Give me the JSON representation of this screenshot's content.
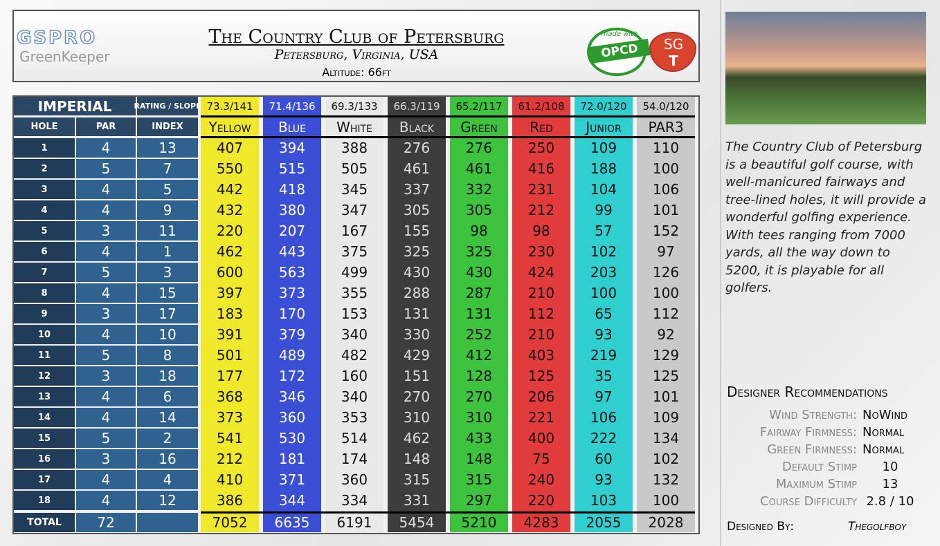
{
  "header": {
    "logo": "GSPRO",
    "logo_sub": "GreenKeeper",
    "title": "The Country Club of Petersburg",
    "subtitle": "Petersburg, Virginia, USA",
    "altitude": "Altitude: 66ft",
    "badge_top": "made with",
    "badge": "OPCD",
    "sg": "SG",
    "sg_sub": "T"
  },
  "table": {
    "system": "IMPERIAL",
    "rating_label": "RATING / SLOPE",
    "columns": [
      "HOLE",
      "PAR",
      "INDEX"
    ],
    "tees": [
      {
        "name": "Yellow",
        "rating": "73.3/141",
        "color": "#f0e82a",
        "text_color": "#111"
      },
      {
        "name": "Blue",
        "rating": "71.4/136",
        "color": "#3b4ed6",
        "text_color": "#fff"
      },
      {
        "name": "White",
        "rating": "69.3/133",
        "color": "#e9e9e9",
        "text_color": "#111"
      },
      {
        "name": "Black",
        "rating": "66.3/119",
        "color": "#3c3c3c",
        "text_color": "#ddd"
      },
      {
        "name": "Green",
        "rating": "65.2/117",
        "color": "#3dc33d",
        "text_color": "#111"
      },
      {
        "name": "Red",
        "rating": "61.2/108",
        "color": "#e23b3b",
        "text_color": "#111"
      },
      {
        "name": "Junior",
        "rating": "72.0/120",
        "color": "#2fcfcf",
        "text_color": "#111"
      },
      {
        "name": "PAR3",
        "rating": "54.0/120",
        "color": "#c9c9c9",
        "text_color": "#111"
      }
    ],
    "rows": [
      [
        1,
        4,
        13,
        407,
        394,
        388,
        276,
        276,
        250,
        109,
        110
      ],
      [
        2,
        5,
        7,
        550,
        515,
        505,
        461,
        461,
        416,
        188,
        100
      ],
      [
        3,
        4,
        5,
        442,
        418,
        345,
        337,
        332,
        231,
        104,
        106
      ],
      [
        4,
        4,
        9,
        432,
        380,
        347,
        305,
        305,
        212,
        99,
        101
      ],
      [
        5,
        3,
        11,
        220,
        207,
        167,
        155,
        98,
        98,
        57,
        152
      ],
      [
        6,
        4,
        1,
        462,
        443,
        375,
        325,
        325,
        230,
        102,
        97
      ],
      [
        7,
        5,
        3,
        600,
        563,
        499,
        430,
        430,
        424,
        203,
        126
      ],
      [
        8,
        4,
        15,
        397,
        373,
        355,
        288,
        287,
        210,
        100,
        100
      ],
      [
        9,
        3,
        17,
        183,
        170,
        153,
        131,
        131,
        112,
        65,
        112
      ],
      [
        10,
        4,
        10,
        391,
        379,
        340,
        330,
        252,
        210,
        93,
        92
      ],
      [
        11,
        5,
        8,
        501,
        489,
        482,
        429,
        412,
        403,
        219,
        129
      ],
      [
        12,
        3,
        18,
        177,
        172,
        160,
        151,
        128,
        125,
        35,
        125
      ],
      [
        13,
        4,
        6,
        368,
        346,
        340,
        270,
        270,
        206,
        97,
        101
      ],
      [
        14,
        4,
        14,
        373,
        360,
        353,
        310,
        310,
        221,
        106,
        109
      ],
      [
        15,
        5,
        2,
        541,
        530,
        514,
        462,
        433,
        400,
        222,
        134
      ],
      [
        16,
        3,
        16,
        212,
        181,
        174,
        148,
        148,
        75,
        60,
        102
      ],
      [
        17,
        4,
        4,
        410,
        371,
        360,
        315,
        315,
        240,
        93,
        132
      ],
      [
        18,
        4,
        12,
        386,
        344,
        334,
        331,
        297,
        220,
        103,
        100
      ]
    ],
    "total": {
      "label": "TOTAL",
      "par": 72,
      "yardages": [
        7052,
        6635,
        6191,
        5454,
        5210,
        4283,
        2055,
        2028
      ]
    }
  },
  "description": "The Country Club of Petersburg is a beautiful golf course, with well-manicured fairways and tree-lined holes, it will provide a wonderful golfing experience. With tees ranging from 7000 yards, all the way down to 5200, it is playable for all golfers.",
  "recommendations": {
    "title": "Designer Recommendations",
    "items": [
      {
        "label": "Wind Strength:",
        "value": "NoWind"
      },
      {
        "label": "Fairway Firmness:",
        "value": "Normal"
      },
      {
        "label": "Green Firmness:",
        "value": "Normal"
      },
      {
        "label": "Default Stimp",
        "value": "10"
      },
      {
        "label": "Maximum Stimp",
        "value": "13"
      },
      {
        "label": "Course Difficulty",
        "value": "2.8 / 10"
      }
    ]
  },
  "designer": {
    "label": "Designed By:",
    "name": "Thegolfboy"
  }
}
